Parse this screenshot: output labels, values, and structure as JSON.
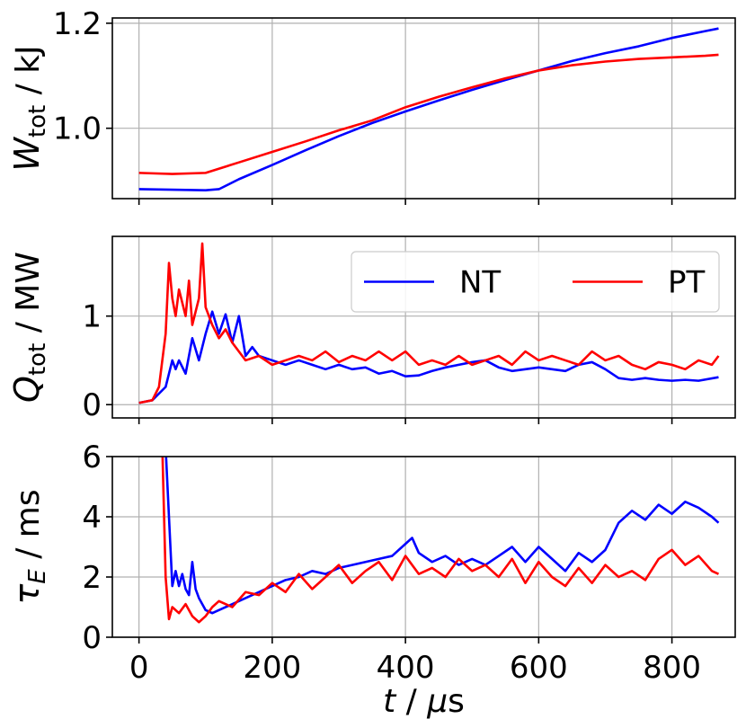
{
  "chart_data": [
    {
      "type": "line",
      "panel": "top",
      "ylabel": "W_tot / kJ",
      "ylabel_parts": {
        "symbol": "W",
        "subscript": "tot",
        "unit": " / kJ"
      },
      "xlim": [
        -40,
        895
      ],
      "ylim": [
        0.866,
        1.21
      ],
      "xticks": [
        0,
        200,
        400,
        600,
        800
      ],
      "yticks": [
        1.0,
        1.2
      ],
      "ytick_labels": [
        "1.0",
        "1.2"
      ],
      "grid": true,
      "series": [
        {
          "name": "NT",
          "color": "#0000ff",
          "x": [
            0,
            50,
            100,
            120,
            150,
            200,
            250,
            300,
            350,
            400,
            450,
            500,
            550,
            600,
            650,
            700,
            750,
            800,
            850,
            870
          ],
          "y": [
            0.884,
            0.883,
            0.882,
            0.884,
            0.903,
            0.93,
            0.958,
            0.985,
            1.01,
            1.032,
            1.053,
            1.073,
            1.092,
            1.11,
            1.128,
            1.143,
            1.156,
            1.172,
            1.185,
            1.19
          ]
        },
        {
          "name": "PT",
          "color": "#ff0000",
          "x": [
            0,
            50,
            100,
            150,
            200,
            250,
            300,
            350,
            400,
            450,
            500,
            550,
            600,
            650,
            700,
            750,
            800,
            850,
            870
          ],
          "y": [
            0.915,
            0.913,
            0.915,
            0.935,
            0.955,
            0.975,
            0.996,
            1.015,
            1.04,
            1.06,
            1.078,
            1.095,
            1.11,
            1.12,
            1.127,
            1.132,
            1.135,
            1.138,
            1.14
          ]
        }
      ]
    },
    {
      "type": "line",
      "panel": "middle",
      "ylabel": "Q_tot / MW",
      "ylabel_parts": {
        "symbol": "Q",
        "subscript": "tot",
        "unit": " / MW"
      },
      "xlim": [
        -40,
        895
      ],
      "ylim": [
        -0.15,
        1.9
      ],
      "xticks": [
        0,
        200,
        400,
        600,
        800
      ],
      "yticks": [
        0,
        1
      ],
      "ytick_labels": [
        "0",
        "1"
      ],
      "grid": true,
      "legend": {
        "location": "top-right",
        "entries": [
          "NT",
          "PT"
        ],
        "ncol": 2
      },
      "series": [
        {
          "name": "NT",
          "color": "#0000ff",
          "x": [
            0,
            20,
            40,
            50,
            55,
            60,
            70,
            80,
            90,
            100,
            110,
            120,
            130,
            140,
            150,
            160,
            170,
            180,
            200,
            220,
            240,
            260,
            280,
            300,
            320,
            340,
            360,
            380,
            400,
            420,
            440,
            460,
            480,
            500,
            520,
            540,
            560,
            580,
            600,
            620,
            640,
            660,
            680,
            700,
            720,
            740,
            760,
            780,
            800,
            820,
            840,
            870
          ],
          "y": [
            0.02,
            0.05,
            0.2,
            0.5,
            0.4,
            0.5,
            0.35,
            0.75,
            0.5,
            0.8,
            1.05,
            0.8,
            1.02,
            0.7,
            1.0,
            0.55,
            0.65,
            0.55,
            0.5,
            0.45,
            0.5,
            0.45,
            0.4,
            0.45,
            0.4,
            0.42,
            0.35,
            0.38,
            0.32,
            0.33,
            0.38,
            0.42,
            0.45,
            0.48,
            0.5,
            0.42,
            0.38,
            0.4,
            0.42,
            0.4,
            0.38,
            0.45,
            0.48,
            0.4,
            0.3,
            0.28,
            0.3,
            0.28,
            0.27,
            0.28,
            0.27,
            0.31
          ]
        },
        {
          "name": "PT",
          "color": "#ff0000",
          "x": [
            0,
            20,
            30,
            40,
            45,
            50,
            55,
            60,
            70,
            75,
            80,
            90,
            95,
            100,
            110,
            120,
            130,
            140,
            150,
            160,
            180,
            200,
            220,
            240,
            260,
            280,
            300,
            320,
            340,
            360,
            380,
            400,
            420,
            440,
            460,
            480,
            500,
            520,
            540,
            560,
            580,
            600,
            620,
            640,
            660,
            680,
            700,
            720,
            740,
            760,
            780,
            800,
            820,
            840,
            860,
            870
          ],
          "y": [
            0.02,
            0.05,
            0.2,
            0.8,
            1.6,
            1.2,
            1.0,
            1.3,
            1.0,
            1.4,
            0.9,
            1.2,
            1.82,
            1.1,
            0.9,
            0.75,
            0.85,
            0.7,
            0.6,
            0.5,
            0.55,
            0.45,
            0.5,
            0.55,
            0.5,
            0.6,
            0.48,
            0.55,
            0.5,
            0.6,
            0.5,
            0.6,
            0.45,
            0.5,
            0.45,
            0.55,
            0.45,
            0.5,
            0.55,
            0.45,
            0.6,
            0.5,
            0.55,
            0.5,
            0.45,
            0.6,
            0.5,
            0.55,
            0.45,
            0.4,
            0.48,
            0.45,
            0.4,
            0.5,
            0.45,
            0.55
          ]
        }
      ]
    },
    {
      "type": "line",
      "panel": "bottom",
      "ylabel": "τ_E / ms",
      "ylabel_parts": {
        "symbol": "τ",
        "subscript": "E",
        "unit": " / ms"
      },
      "xlabel": "t / μs",
      "xlabel_parts": {
        "symbol": "t",
        "unit": " / ",
        "unit_symbol": "μ",
        "unit_rest": "s"
      },
      "xlim": [
        -40,
        895
      ],
      "ylim": [
        0,
        6
      ],
      "xticks": [
        0,
        200,
        400,
        600,
        800
      ],
      "xtick_labels": [
        "0",
        "200",
        "400",
        "600",
        "800"
      ],
      "yticks": [
        0,
        2,
        4,
        6
      ],
      "ytick_labels": [
        "0",
        "2",
        "4",
        "6"
      ],
      "grid": true,
      "series": [
        {
          "name": "NT",
          "color": "#0000ff",
          "x": [
            40,
            45,
            50,
            55,
            60,
            65,
            70,
            75,
            80,
            85,
            90,
            100,
            110,
            120,
            140,
            160,
            180,
            200,
            220,
            240,
            260,
            280,
            300,
            320,
            340,
            360,
            380,
            400,
            410,
            420,
            440,
            460,
            480,
            500,
            520,
            540,
            560,
            580,
            600,
            620,
            640,
            660,
            680,
            700,
            720,
            740,
            760,
            780,
            800,
            820,
            840,
            860,
            870
          ],
          "y": [
            6.3,
            4.0,
            1.7,
            2.2,
            1.7,
            2.1,
            1.6,
            1.4,
            2.5,
            1.6,
            1.3,
            0.9,
            0.8,
            0.9,
            1.1,
            1.3,
            1.5,
            1.7,
            1.9,
            2.0,
            2.2,
            2.1,
            2.3,
            2.4,
            2.5,
            2.6,
            2.7,
            3.1,
            3.3,
            2.8,
            2.5,
            2.7,
            2.4,
            2.6,
            2.4,
            2.7,
            3.0,
            2.5,
            3.0,
            2.6,
            2.2,
            2.8,
            2.5,
            2.9,
            3.8,
            4.2,
            3.9,
            4.4,
            4.1,
            4.5,
            4.3,
            4.0,
            3.8
          ]
        },
        {
          "name": "PT",
          "color": "#ff0000",
          "x": [
            35,
            40,
            45,
            50,
            60,
            70,
            80,
            90,
            100,
            110,
            120,
            140,
            160,
            180,
            200,
            220,
            240,
            260,
            280,
            300,
            320,
            340,
            360,
            380,
            400,
            420,
            440,
            460,
            480,
            500,
            520,
            540,
            560,
            580,
            600,
            620,
            640,
            660,
            680,
            700,
            720,
            740,
            760,
            780,
            800,
            820,
            840,
            860,
            870
          ],
          "y": [
            6.3,
            2.0,
            0.6,
            1.0,
            0.8,
            1.1,
            0.7,
            0.5,
            0.7,
            1.0,
            1.2,
            1.0,
            1.5,
            1.4,
            1.8,
            1.5,
            2.1,
            1.6,
            2.0,
            2.4,
            1.8,
            2.2,
            2.5,
            1.9,
            2.7,
            2.1,
            2.3,
            2.0,
            2.6,
            2.2,
            2.4,
            2.0,
            2.6,
            1.8,
            2.5,
            2.0,
            1.7,
            2.3,
            1.8,
            2.4,
            2.0,
            2.2,
            1.9,
            2.6,
            2.9,
            2.4,
            2.7,
            2.2,
            2.1
          ]
        }
      ]
    }
  ],
  "colors": {
    "NT": "#0000ff",
    "PT": "#ff0000",
    "grid": "#b0b0b0",
    "axis": "#000000"
  }
}
